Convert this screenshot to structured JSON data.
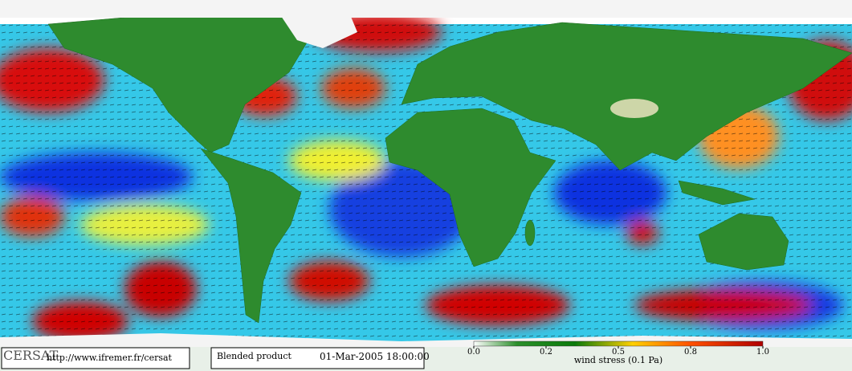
{
  "footer": {
    "logo": "CERSAT",
    "url": "http://www.ifremer.fr/cersat",
    "product": "Blended product",
    "datetime": "01-Mar-2005 18:00:00"
  },
  "colorbar": {
    "ticks": [
      {
        "value": 0,
        "label": "0.0"
      },
      0.2,
      0.5,
      0.8,
      {
        "value": 1,
        "label": "1.0"
      }
    ],
    "label": "wind stress (0.1 Pa)"
  }
}
